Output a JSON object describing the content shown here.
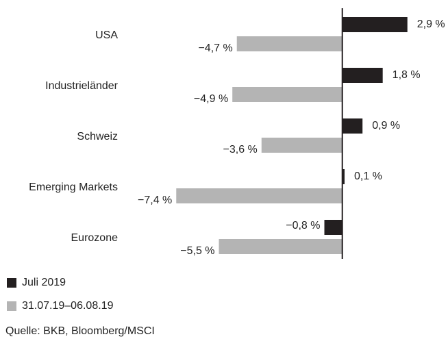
{
  "chart_data": {
    "type": "hbar",
    "categories": [
      "USA",
      "Industrieländer",
      "Schweiz",
      "Emerging Markets",
      "Eurozone"
    ],
    "series": [
      {
        "name": "Juli 2019",
        "color": "#231f20",
        "values": [
          2.9,
          1.8,
          0.9,
          0.1,
          -0.8
        ],
        "value_labels": [
          "2,9 %",
          "1,8 %",
          "0,9 %",
          "0,1 %",
          "−0,8 %"
        ]
      },
      {
        "name": "31.07.19–06.08.19",
        "color": "#b4b4b4",
        "values": [
          -4.7,
          -4.9,
          -3.6,
          -7.4,
          -5.5
        ],
        "value_labels": [
          "−4,7 %",
          "−4,9 %",
          "−3,6 %",
          "−7,4 %",
          "−5,5 %"
        ]
      }
    ],
    "xlim": [
      -7.5,
      3
    ],
    "source": "Quelle: BKB, Bloomberg/MSCI"
  }
}
